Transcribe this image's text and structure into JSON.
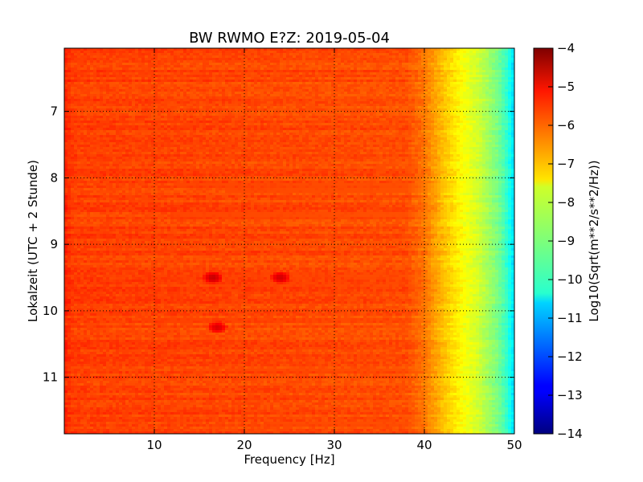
{
  "chart_data": {
    "type": "heatmap",
    "title": "BW RWMO E?Z: 2019-05-04",
    "xlabel": "Frequency [Hz]",
    "ylabel": "Lokalzeit (UTC + 2 Stunde)",
    "xlim": [
      0,
      50
    ],
    "ylim": [
      11.85,
      6.05
    ],
    "x_ticks": [
      10,
      20,
      30,
      40,
      50
    ],
    "x_tick_labels": [
      "10",
      "20",
      "30",
      "40",
      "50"
    ],
    "y_ticks": [
      7,
      8,
      9,
      10,
      11
    ],
    "y_tick_labels": [
      "7",
      "8",
      "9",
      "10",
      "11"
    ],
    "grid": true,
    "colorbar": {
      "label": "Log10(Sqrt(m**2/s**2/Hz))",
      "range": [
        -14,
        -4
      ],
      "ticks": [
        -4,
        -5,
        -6,
        -7,
        -8,
        -9,
        -10,
        -11,
        -12,
        -13,
        -14
      ],
      "tick_labels": [
        "−4",
        "−5",
        "−6",
        "−7",
        "−8",
        "−9",
        "−10",
        "−11",
        "−12",
        "−13",
        "−14"
      ],
      "colormap": "jet"
    },
    "base_level": -5.9,
    "frequency_rolloff": [
      {
        "f": 0,
        "v": -5.6
      },
      {
        "f": 1,
        "v": -5.85
      },
      {
        "f": 38,
        "v": -6.0
      },
      {
        "f": 40,
        "v": -6.4
      },
      {
        "f": 42,
        "v": -7.1
      },
      {
        "f": 44,
        "v": -7.7
      },
      {
        "f": 46,
        "v": -8.2
      },
      {
        "f": 48,
        "v": -9.0
      },
      {
        "f": 49,
        "v": -9.6
      },
      {
        "f": 50,
        "v": -10.6
      }
    ],
    "bands": [
      {
        "time": 8.1,
        "f_start": 12,
        "f_end": 50,
        "value": -5.3
      },
      {
        "time": 8.2,
        "f_start": 18,
        "f_end": 50,
        "value": -5.2
      },
      {
        "time": 8.55,
        "f_start": 12,
        "f_end": 44,
        "value": -5.0
      },
      {
        "time": 8.6,
        "f_start": 14,
        "f_end": 50,
        "value": -5.0
      },
      {
        "time": 9.45,
        "f_start": 15,
        "f_end": 50,
        "value": -5.0
      },
      {
        "time": 9.5,
        "f_start": 9,
        "f_end": 44,
        "value": -5.1
      },
      {
        "time": 9.6,
        "f_start": 16,
        "f_end": 42,
        "value": -5.3
      },
      {
        "time": 10.15,
        "f_start": 9,
        "f_end": 50,
        "value": -5.1
      },
      {
        "time": 10.9,
        "f_start": 18,
        "f_end": 44,
        "value": -5.4
      },
      {
        "time": 11.7,
        "f_start": 22,
        "f_end": 42,
        "value": -5.5
      }
    ],
    "spots": [
      {
        "time": 9.5,
        "freq": 16.5,
        "value": -4.7
      },
      {
        "time": 9.5,
        "freq": 24,
        "value": -4.8
      },
      {
        "time": 10.25,
        "freq": 17,
        "value": -4.9
      }
    ]
  }
}
